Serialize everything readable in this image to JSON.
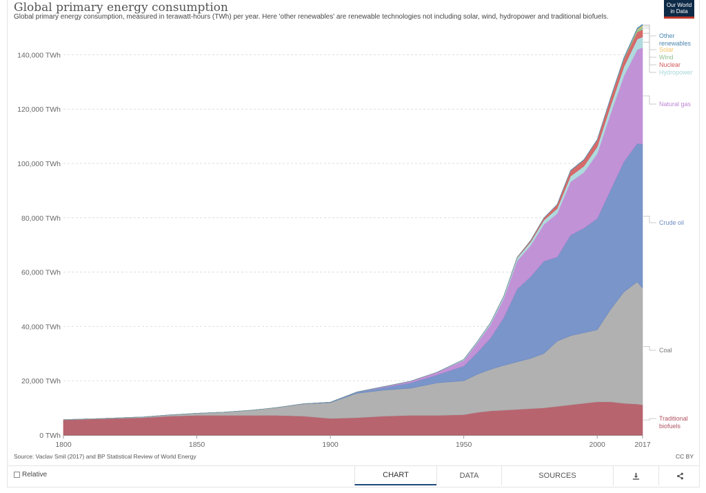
{
  "header": {
    "title": "Global primary energy consumption",
    "subtitle": "Global primary energy consumption, measured in terawatt-hours (TWh) per year. Here 'other renewables' are renewable technologies not including solar, wind, hydropower and traditional biofuels."
  },
  "logo": {
    "line1": "Our World",
    "line2": "in Data"
  },
  "footer": {
    "source": "Source: Vaclav Smil (2017) and BP Statistical Review of World Energy",
    "license": "CC BY"
  },
  "controls": {
    "relative_label": "Relative",
    "tabs": {
      "chart": "CHART",
      "data": "DATA",
      "sources": "SOURCES"
    },
    "download_icon": "download-icon",
    "share_icon": "share-icon"
  },
  "colors": {
    "traditional_biofuels": "#b0535f",
    "coal": "#a9a9a9",
    "crude_oil": "#6b89c3",
    "natural_gas": "#bb86d3",
    "hydropower": "#a7d6d9",
    "nuclear": "#d35a5a",
    "wind": "#8fbf8a",
    "solar": "#f5c463",
    "other_renewables": "#4a86b0"
  },
  "chart_data": {
    "type": "area",
    "stacked": true,
    "title": "Global primary energy consumption",
    "xlabel": "",
    "ylabel": "",
    "xlim": [
      1800,
      2017
    ],
    "ylim": [
      0,
      150000
    ],
    "x_ticks": [
      1800,
      1850,
      1900,
      1950,
      2000,
      2017
    ],
    "y_ticks": [
      0,
      20000,
      40000,
      60000,
      80000,
      100000,
      120000,
      140000
    ],
    "y_tick_labels": [
      "0 TWh",
      "20,000 TWh",
      "40,000 TWh",
      "60,000 TWh",
      "80,000 TWh",
      "100,000 TWh",
      "120,000 TWh",
      "140,000 TWh"
    ],
    "grid": "horizontal-dashed",
    "legend": "right-end labels",
    "x": [
      1800,
      1810,
      1820,
      1830,
      1840,
      1850,
      1860,
      1870,
      1880,
      1890,
      1900,
      1910,
      1920,
      1930,
      1940,
      1950,
      1955,
      1960,
      1965,
      1970,
      1975,
      1980,
      1985,
      1990,
      1995,
      2000,
      2005,
      2010,
      2015,
      2017
    ],
    "series": [
      {
        "name": "Traditional biofuels",
        "color_key": "traditional_biofuels",
        "values": [
          5556,
          5833,
          6111,
          6389,
          6944,
          7222,
          7222,
          7222,
          7222,
          6944,
          6111,
          6389,
          6944,
          7222,
          7222,
          7500,
          8333,
          8889,
          9167,
          9444,
          9722,
          10000,
          10556,
          11111,
          11667,
          12222,
          12222,
          11667,
          11389,
          11111
        ]
      },
      {
        "name": "Coal",
        "color_key": "coal",
        "values": [
          97,
          140,
          180,
          280,
          500,
          800,
          1200,
          1900,
          2900,
          4500,
          5800,
          9000,
          9600,
          10000,
          12000,
          12500,
          14000,
          15300,
          16500,
          17500,
          18500,
          20000,
          24000,
          25500,
          26000,
          26500,
          34000,
          41000,
          45000,
          43000
        ]
      },
      {
        "name": "Crude oil",
        "color_key": "crude_oil",
        "values": [
          0,
          0,
          0,
          0,
          0,
          0,
          0,
          0,
          0,
          100,
          200,
          500,
          1000,
          2000,
          2900,
          5400,
          8000,
          11500,
          17600,
          26800,
          30000,
          34000,
          31000,
          37000,
          38500,
          41000,
          44000,
          48000,
          51000,
          53000
        ]
      },
      {
        "name": "Natural gas",
        "color_key": "natural_gas",
        "values": [
          0,
          0,
          0,
          0,
          0,
          0,
          0,
          0,
          0,
          0,
          0,
          0,
          300,
          600,
          1000,
          2100,
          3500,
          5000,
          7000,
          10400,
          11500,
          13500,
          16000,
          19600,
          20500,
          23800,
          28000,
          31500,
          34500,
          35500
        ]
      },
      {
        "name": "Hydropower",
        "color_key": "hydropower",
        "values": [
          0,
          0,
          0,
          0,
          0,
          0,
          0,
          0,
          0,
          0,
          0,
          0,
          0,
          0,
          0,
          330,
          450,
          690,
          880,
          1100,
          1300,
          1600,
          1800,
          2100,
          2300,
          2600,
          2900,
          3400,
          3900,
          4000
        ]
      },
      {
        "name": "Nuclear",
        "color_key": "nuclear",
        "values": [
          0,
          0,
          0,
          0,
          0,
          0,
          0,
          0,
          0,
          0,
          0,
          0,
          0,
          0,
          0,
          0,
          0,
          0,
          50,
          200,
          500,
          800,
          1500,
          2000,
          2300,
          2500,
          2750,
          2750,
          2550,
          2600
        ]
      },
      {
        "name": "Wind",
        "color_key": "wind",
        "values": [
          0,
          0,
          0,
          0,
          0,
          0,
          0,
          0,
          0,
          0,
          0,
          0,
          0,
          0,
          0,
          0,
          0,
          0,
          0,
          0,
          0,
          0,
          0,
          0,
          0,
          30,
          100,
          340,
          830,
          1100
        ]
      },
      {
        "name": "Solar",
        "color_key": "solar",
        "values": [
          0,
          0,
          0,
          0,
          0,
          0,
          0,
          0,
          0,
          0,
          0,
          0,
          0,
          0,
          0,
          0,
          0,
          0,
          0,
          0,
          0,
          0,
          0,
          0,
          0,
          0,
          0,
          30,
          250,
          450
        ]
      },
      {
        "name": "Other renewables",
        "color_key": "other_renewables",
        "values": [
          0,
          0,
          0,
          0,
          0,
          0,
          0,
          0,
          0,
          0,
          0,
          0,
          0,
          0,
          0,
          0,
          0,
          0,
          0,
          0,
          30,
          50,
          80,
          120,
          130,
          150,
          200,
          280,
          400,
          450
        ]
      }
    ],
    "end_labels": [
      {
        "series": "Other renewables",
        "lines": [
          "Other",
          "renewables"
        ]
      },
      {
        "series": "Solar",
        "lines": [
          "Solar"
        ]
      },
      {
        "series": "Wind",
        "lines": [
          "Wind"
        ]
      },
      {
        "series": "Nuclear",
        "lines": [
          "Nuclear"
        ]
      },
      {
        "series": "Hydropower",
        "lines": [
          "Hydropower"
        ]
      },
      {
        "series": "Natural gas",
        "lines": [
          "Natural gas"
        ]
      },
      {
        "series": "Crude oil",
        "lines": [
          "Crude oil"
        ]
      },
      {
        "series": "Coal",
        "lines": [
          "Coal"
        ]
      },
      {
        "series": "Traditional biofuels",
        "lines": [
          "Traditional",
          "biofuels"
        ]
      }
    ]
  }
}
